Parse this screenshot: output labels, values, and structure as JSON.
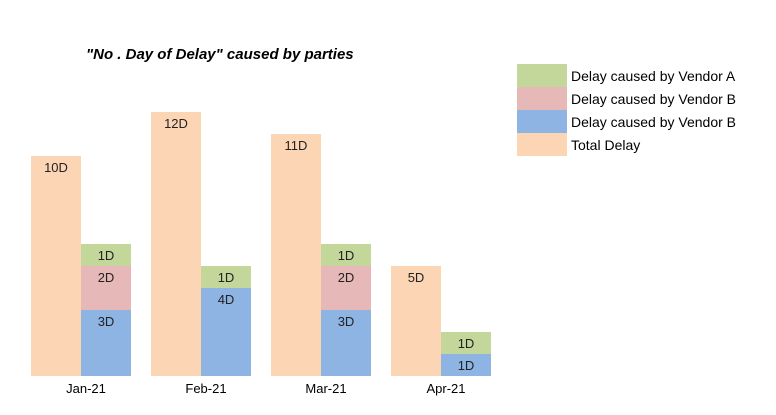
{
  "chart_data": {
    "type": "bar",
    "title": "\"No . Day of Delay\" caused by parties",
    "xlabel": "",
    "ylabel": "",
    "categories": [
      "Jan-21",
      "Feb-21",
      "Mar-21",
      "Apr-21"
    ],
    "total": {
      "name": "Total Delay",
      "values": [
        10,
        12,
        11,
        5
      ],
      "labels": [
        "10D",
        "12D",
        "11D",
        "5D"
      ]
    },
    "stack_series": [
      {
        "name": "Delay caused by Vendor B",
        "values": [
          3,
          4,
          3,
          1
        ],
        "labels": [
          "3D",
          "4D",
          "3D",
          "1D"
        ]
      },
      {
        "name": "Delay caused by Vendor B",
        "values": [
          2,
          0,
          2,
          0
        ],
        "labels": [
          "2D",
          "",
          "2D",
          ""
        ]
      },
      {
        "name": "Delay caused by Vendor A",
        "values": [
          1,
          1,
          1,
          1
        ],
        "labels": [
          "1D",
          "1D",
          "1D",
          "1D"
        ]
      }
    ],
    "legend": {
      "placement": "top-right",
      "entries": [
        "Delay caused by Vendor A",
        "Delay caused by Vendor B",
        "Delay caused by Vendor B",
        "Total Delay"
      ]
    },
    "ylim": [
      0,
      12
    ],
    "grid": false,
    "colors": {
      "total": "#FCD5B5",
      "vendor_a": "#C4D79B",
      "vendor_b_pink": "#E6B9B8",
      "vendor_b_blue": "#8EB4E3"
    }
  }
}
